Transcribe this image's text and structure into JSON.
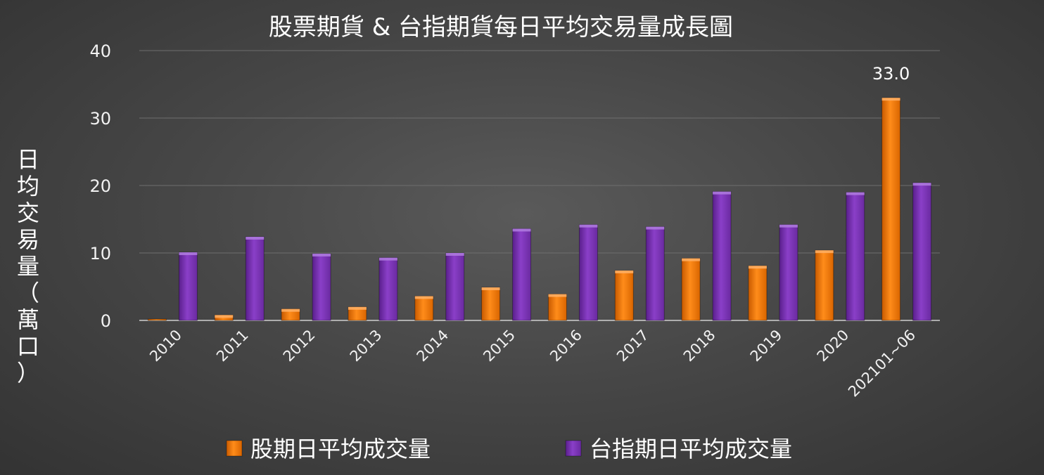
{
  "chart_data": {
    "type": "bar",
    "title": "股票期貨 & 台指期貨每日平均交易量成長圖",
    "ylabel": "日均交易量（萬口）",
    "xlabel": "",
    "ylim": [
      0,
      40
    ],
    "yticks": [
      0,
      10,
      20,
      30,
      40
    ],
    "grid": true,
    "legend_position": "bottom",
    "categories": [
      "2010",
      "2011",
      "2012",
      "2013",
      "2014",
      "2015",
      "2016",
      "2017",
      "2018",
      "2019",
      "2020",
      "202101~06"
    ],
    "series": [
      {
        "name": "股期日平均成交量",
        "color": "#f07a0a",
        "values": [
          0.2,
          0.8,
          1.7,
          2.0,
          3.6,
          4.9,
          3.9,
          7.4,
          9.2,
          8.1,
          10.4,
          33.0
        ]
      },
      {
        "name": "台指期日平均成交量",
        "color": "#7a2fb5",
        "values": [
          10.1,
          12.4,
          9.9,
          9.3,
          10.0,
          13.6,
          14.2,
          13.9,
          19.1,
          14.2,
          19.0,
          20.4
        ]
      }
    ],
    "data_labels": [
      {
        "series": 0,
        "index": 11,
        "text": "33.0"
      }
    ]
  }
}
